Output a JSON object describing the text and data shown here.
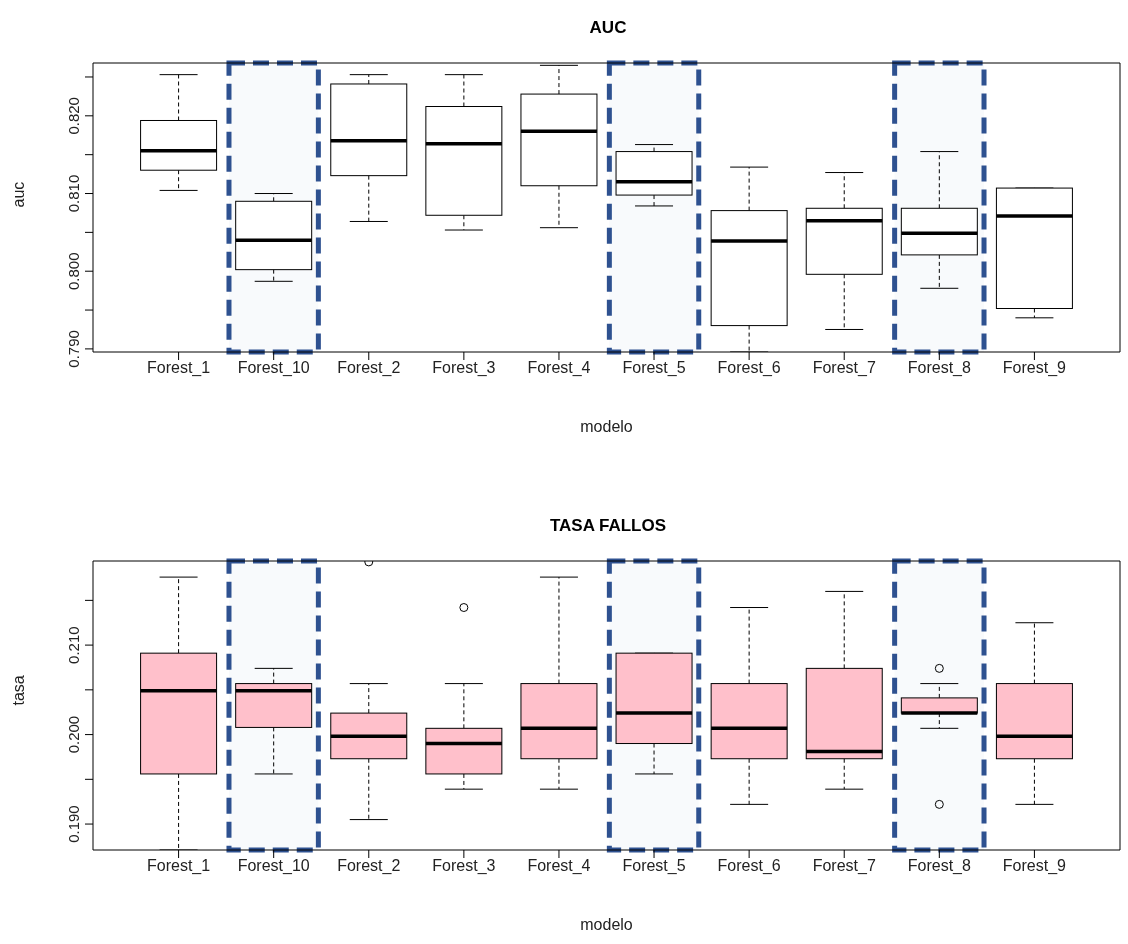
{
  "chart_data": [
    {
      "type": "box",
      "title": "AUC",
      "xlabel": "modelo",
      "ylabel": "auc",
      "color": "#ffffff",
      "categories": [
        "Forest_1",
        "Forest_10",
        "Forest_2",
        "Forest_3",
        "Forest_4",
        "Forest_5",
        "Forest_6",
        "Forest_7",
        "Forest_8",
        "Forest_9"
      ],
      "ylim": [
        0.7896,
        0.8268
      ],
      "yticks": [
        {
          "value": 0.79,
          "label": "0.790"
        },
        {
          "value": 0.795,
          "label": null
        },
        {
          "value": 0.8,
          "label": "0.800"
        },
        {
          "value": 0.805,
          "label": null
        },
        {
          "value": 0.81,
          "label": "0.810"
        },
        {
          "value": 0.815,
          "label": null
        },
        {
          "value": 0.82,
          "label": "0.820"
        },
        {
          "value": 0.825,
          "label": null
        }
      ],
      "boxes": [
        {
          "low": 0.8104,
          "q1": 0.813,
          "median": 0.8155,
          "q3": 0.8194,
          "high": 0.8253
        },
        {
          "low": 0.7987,
          "q1": 0.8002,
          "median": 0.804,
          "q3": 0.809,
          "high": 0.81
        },
        {
          "low": 0.8064,
          "q1": 0.8123,
          "median": 0.8168,
          "q3": 0.8241,
          "high": 0.8253
        },
        {
          "low": 0.8053,
          "q1": 0.8072,
          "median": 0.8164,
          "q3": 0.8212,
          "high": 0.8253
        },
        {
          "low": 0.8056,
          "q1": 0.811,
          "median": 0.818,
          "q3": 0.8228,
          "high": 0.8265
        },
        {
          "low": 0.8084,
          "q1": 0.8098,
          "median": 0.8115,
          "q3": 0.8154,
          "high": 0.8163
        },
        {
          "low": 0.7896,
          "q1": 0.793,
          "median": 0.8039,
          "q3": 0.8078,
          "high": 0.8134
        },
        {
          "low": 0.7925,
          "q1": 0.7996,
          "median": 0.8065,
          "q3": 0.8081,
          "high": 0.8127
        },
        {
          "low": 0.7978,
          "q1": 0.8021,
          "median": 0.8049,
          "q3": 0.8081,
          "high": 0.8154
        },
        {
          "low": 0.794,
          "q1": 0.7952,
          "median": 0.8071,
          "q3": 0.8107,
          "high": 0.8107
        }
      ],
      "bands": [
        {
          "axis": "x",
          "from": "Forest_10",
          "to": "Forest_10",
          "color": "#2e5190"
        },
        {
          "axis": "x",
          "from": "Forest_5",
          "to": "Forest_5",
          "color": "#2e5190"
        },
        {
          "axis": "x",
          "from": "Forest_8",
          "to": "Forest_8",
          "color": "#2e5190"
        }
      ],
      "grid": false,
      "legend": false
    },
    {
      "type": "box",
      "title": "TASA FALLOS",
      "xlabel": "modelo",
      "ylabel": "tasa",
      "color": "#ffc0cb",
      "categories": [
        "Forest_1",
        "Forest_10",
        "Forest_2",
        "Forest_3",
        "Forest_4",
        "Forest_5",
        "Forest_6",
        "Forest_7",
        "Forest_8",
        "Forest_9"
      ],
      "ylim": [
        0.1871,
        0.2194
      ],
      "yticks": [
        {
          "value": 0.19,
          "label": "0.190"
        },
        {
          "value": 0.195,
          "label": null
        },
        {
          "value": 0.2,
          "label": "0.200"
        },
        {
          "value": 0.205,
          "label": null
        },
        {
          "value": 0.21,
          "label": "0.210"
        },
        {
          "value": 0.215,
          "label": null
        }
      ],
      "boxes": [
        {
          "low": 0.1871,
          "q1": 0.1956,
          "median": 0.2049,
          "q3": 0.2091,
          "high": 0.2176
        },
        {
          "low": 0.1956,
          "q1": 0.2008,
          "median": 0.2049,
          "q3": 0.2057,
          "high": 0.2074
        },
        {
          "low": 0.1905,
          "q1": 0.1973,
          "median": 0.1998,
          "q3": 0.2024,
          "high": 0.2057,
          "outliers": [
            0.2193
          ]
        },
        {
          "low": 0.1939,
          "q1": 0.1956,
          "median": 0.199,
          "q3": 0.2007,
          "high": 0.2057,
          "outliers": [
            0.2142
          ]
        },
        {
          "low": 0.1939,
          "q1": 0.1973,
          "median": 0.2007,
          "q3": 0.2057,
          "high": 0.2176
        },
        {
          "low": 0.1956,
          "q1": 0.199,
          "median": 0.2024,
          "q3": 0.2091,
          "high": 0.2091
        },
        {
          "low": 0.1922,
          "q1": 0.1973,
          "median": 0.2007,
          "q3": 0.2057,
          "high": 0.2142
        },
        {
          "low": 0.1939,
          "q1": 0.1973,
          "median": 0.1981,
          "q3": 0.2074,
          "high": 0.216
        },
        {
          "low": 0.2007,
          "q1": 0.2024,
          "median": 0.2024,
          "q3": 0.2041,
          "high": 0.2057,
          "outliers": [
            0.2074,
            0.1922
          ]
        },
        {
          "low": 0.1922,
          "q1": 0.1973,
          "median": 0.1998,
          "q3": 0.2057,
          "high": 0.2125
        }
      ],
      "bands": [
        {
          "axis": "x",
          "from": "Forest_10",
          "to": "Forest_10",
          "color": "#2e5190"
        },
        {
          "axis": "x",
          "from": "Forest_5",
          "to": "Forest_5",
          "color": "#2e5190"
        },
        {
          "axis": "x",
          "from": "Forest_8",
          "to": "Forest_8",
          "color": "#2e5190"
        }
      ],
      "grid": false,
      "legend": false
    }
  ]
}
